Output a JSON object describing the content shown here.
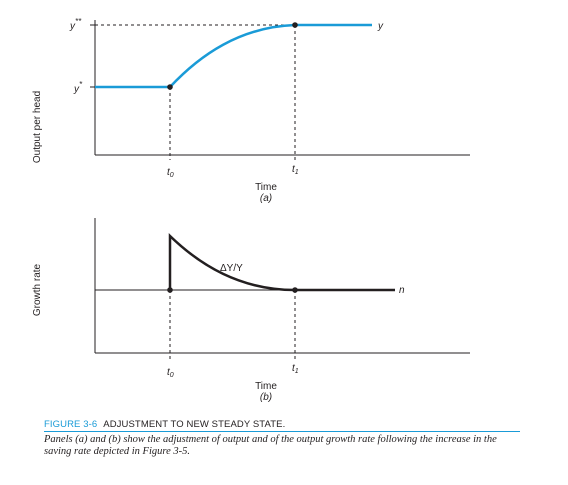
{
  "chart_data": [
    {
      "panel": "a",
      "type": "line",
      "ylabel": "Output per head",
      "xlabel": "Time",
      "panel_label": "(a)",
      "x_ticks": [
        "t0",
        "t1"
      ],
      "y_ticks": [
        "y*",
        "y**"
      ],
      "series": [
        {
          "name": "y",
          "points": [
            [
              0,
              1
            ],
            [
              1,
              1
            ],
            [
              1.0,
              1.0
            ],
            [
              1.25,
              1.35
            ],
            [
              1.5,
              1.62
            ],
            [
              1.75,
              1.82
            ],
            [
              2.0,
              1.95
            ],
            [
              2.3,
              2.0
            ],
            [
              2.6,
              2.0
            ],
            [
              3.0,
              2.0
            ]
          ]
        }
      ],
      "markers": [
        [
          1,
          1
        ],
        [
          2.3,
          2.0
        ]
      ],
      "ylim": [
        0,
        2.1
      ],
      "xlim": [
        0,
        3.5
      ]
    },
    {
      "panel": "b",
      "type": "line",
      "ylabel": "Growth rate",
      "xlabel": "Time",
      "panel_label": "(b)",
      "x_ticks": [
        "t0",
        "t1"
      ],
      "series": [
        {
          "name": "ΔY/Y",
          "points": [
            [
              0,
              1
            ],
            [
              1,
              1
            ],
            [
              1,
              2
            ],
            [
              1.2,
              1.7
            ],
            [
              1.5,
              1.4
            ],
            [
              1.8,
              1.2
            ],
            [
              2.05,
              1.08
            ],
            [
              2.3,
              1.0
            ],
            [
              3.0,
              1.0
            ]
          ]
        },
        {
          "name": "n",
          "points": [
            [
              0,
              1
            ],
            [
              3.0,
              1
            ]
          ]
        }
      ],
      "markers": [
        [
          1,
          1
        ],
        [
          2.3,
          1.0
        ]
      ],
      "ylim": [
        0,
        2.3
      ],
      "xlim": [
        0,
        3.5
      ]
    }
  ],
  "figure": {
    "number": "FIGURE 3-6",
    "title": "ADJUSTMENT TO NEW STEADY STATE.",
    "caption": "Panels (a) and (b) show the adjustment of output and of the output growth rate following the increase in the saving rate depicted in Figure 3-5."
  },
  "labels": {
    "a_ylabel": "Output per head",
    "b_ylabel": "Growth rate",
    "y_star": "y*",
    "y_double_star": "y**",
    "y_series": "y",
    "t0": "t0",
    "t1": "t1",
    "time": "Time",
    "panel_a": "(a)",
    "panel_b": "(b)",
    "growth_series": "ΔY/Y",
    "n": "n"
  },
  "colors": {
    "curve": "#1a9bd7",
    "axis": "#231f20",
    "accent": "#1a9bd7"
  }
}
